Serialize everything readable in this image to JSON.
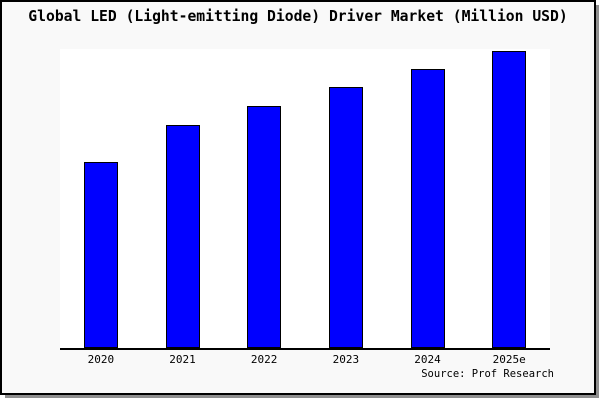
{
  "source_note": "Source: Prof Research",
  "colors": {
    "bar_fill": "#0000FF",
    "bar_border": "#000000",
    "canvas_background": "#F9F9F9",
    "plot_background": "#FFFFFF",
    "axis_line": "#000000",
    "frame_border": "#000000",
    "frame_shadow": "#8F8F8F",
    "text": "#000000"
  },
  "chart_data": {
    "type": "bar",
    "title": "Global LED (Light-emitting Diode) Driver Market (Million USD)",
    "categories": [
      "2020",
      "2021",
      "2022",
      "2023",
      "2024",
      "2025e"
    ],
    "values": [
      62.1,
      74.5,
      80.9,
      87.2,
      93.2,
      99.5
    ],
    "value_units": "relative index estimated from bar heights (2025e ~ 100); no numeric y-axis shown",
    "ylim": [
      0,
      100
    ],
    "xlabel": "",
    "ylabel": "",
    "grid": false,
    "legend": false,
    "y_axis_visible": false,
    "x_axis_visible": true,
    "legend_position": "none",
    "annotations": [
      "Source: Prof Research"
    ]
  }
}
